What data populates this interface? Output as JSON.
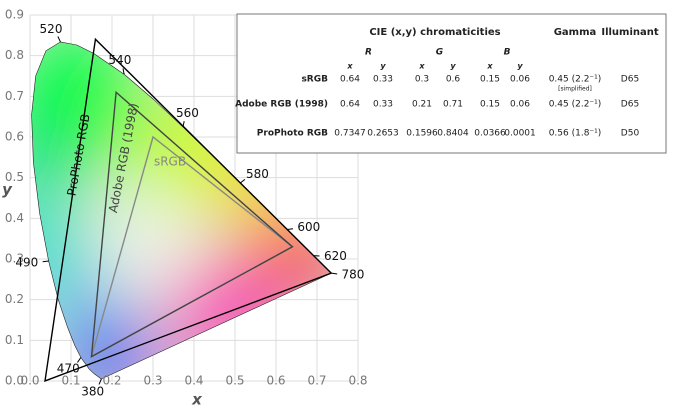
{
  "chart_data": {
    "type": "gamut",
    "x_label": "x",
    "y_label": "y",
    "xlim": [
      0,
      0.8
    ],
    "ylim": [
      0,
      0.9
    ],
    "xticks": [
      {
        "value": 0,
        "label": "0.0"
      },
      0.1,
      0.2,
      0.3,
      0.4,
      0.5,
      0.6,
      0.7,
      0.8
    ],
    "yticks": [
      {
        "value": 0,
        "label": "0.0"
      },
      0.1,
      0.2,
      0.3,
      0.4,
      0.5,
      0.6,
      0.7,
      0.8,
      0.9
    ],
    "grid": true,
    "locus": {
      "x": [
        0.1741,
        0.1566,
        0.144,
        0.1241,
        0.1096,
        0.0913,
        0.0687,
        0.0454,
        0.0235,
        0.0082,
        0.0039,
        0.0139,
        0.0389,
        0.0743,
        0.1142,
        0.1547,
        0.2296,
        0.3016,
        0.3731,
        0.4441,
        0.5125,
        0.5752,
        0.627,
        0.6915,
        0.719,
        0.7347
      ],
      "y": [
        0.005,
        0.0177,
        0.0297,
        0.0578,
        0.0868,
        0.1327,
        0.2007,
        0.295,
        0.4127,
        0.5384,
        0.6548,
        0.7502,
        0.812,
        0.8338,
        0.8262,
        0.8059,
        0.7543,
        0.6923,
        0.6245,
        0.5547,
        0.4866,
        0.4242,
        0.3725,
        0.3083,
        0.2809,
        0.2653
      ]
    },
    "wavelength_labels": [
      {
        "label": "380",
        "x": 0.1741,
        "y": 0.005
      },
      {
        "label": "470",
        "x": 0.1241,
        "y": 0.0578
      },
      {
        "label": "490",
        "x": 0.0454,
        "y": 0.295
      },
      {
        "label": "520",
        "x": 0.0743,
        "y": 0.8338
      },
      {
        "label": "540",
        "x": 0.2296,
        "y": 0.7543
      },
      {
        "label": "560",
        "x": 0.3731,
        "y": 0.6245
      },
      {
        "label": "580",
        "x": 0.5125,
        "y": 0.4866
      },
      {
        "label": "600",
        "x": 0.627,
        "y": 0.3725
      },
      {
        "label": "620",
        "x": 0.6915,
        "y": 0.3083
      },
      {
        "label": "780",
        "x": 0.7347,
        "y": 0.2653
      }
    ],
    "gamut_colors": [
      "#888888",
      "#444444",
      "#000000"
    ]
  },
  "table": {
    "title": "CIE (x,y) chromaticities",
    "gamma": "Gamma",
    "illuminant": "Illuminant",
    "primaries": [
      "R",
      "G",
      "B"
    ],
    "coords": [
      "x",
      "y",
      "x",
      "y",
      "x",
      "y"
    ],
    "rows": [
      {
        "name": "sRGB",
        "values": [
          0.64,
          0.33,
          0.3,
          0.6,
          0.15,
          0.06
        ],
        "gamma": "0.45 (2.2⁻¹)",
        "note": "[simplified]",
        "illuminant": "D65"
      },
      {
        "name": "Adobe RGB (1998)",
        "values": [
          0.64,
          0.33,
          0.21,
          0.71,
          0.15,
          0.06
        ],
        "gamma": "0.45 (2.2⁻¹)",
        "illuminant": "D65"
      },
      {
        "name": "ProPhoto RGB",
        "values": [
          0.7347,
          0.2653,
          0.1596,
          0.8404,
          0.0366,
          0.0001
        ],
        "gamma": "0.56 (1.8⁻¹)",
        "illuminant": "D50"
      }
    ]
  }
}
